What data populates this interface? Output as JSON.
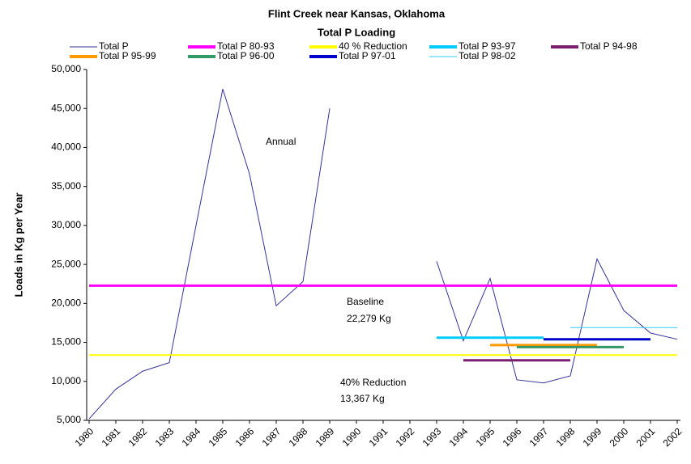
{
  "chart_data": {
    "type": "line",
    "title": "Flint Creek near Kansas, Oklahoma",
    "subtitle": "Total P Loading",
    "y_label": "Loads in Kg per Year",
    "xlim": [
      1980,
      2002
    ],
    "xticks": [
      1980,
      1981,
      1982,
      1983,
      1984,
      1985,
      1986,
      1987,
      1988,
      1989,
      1990,
      1991,
      1992,
      1993,
      1994,
      1995,
      1996,
      1997,
      1998,
      1999,
      2000,
      2001,
      2002
    ],
    "ylim": [
      5000,
      50000
    ],
    "yticks": [
      {
        "value": 5000,
        "label": "5,000"
      },
      {
        "value": 10000,
        "label": "10,000"
      },
      {
        "value": 15000,
        "label": "15,000"
      },
      {
        "value": 20000,
        "label": "20,000"
      },
      {
        "value": 25000,
        "label": "25,000"
      },
      {
        "value": 30000,
        "label": "30,000"
      },
      {
        "value": 35000,
        "label": "35,000"
      },
      {
        "value": 40000,
        "label": "40,000"
      },
      {
        "value": 45000,
        "label": "45,000"
      },
      {
        "value": 50000,
        "label": "50,000"
      }
    ],
    "grid": false,
    "series": [
      {
        "name": "Total P",
        "color": "#333399",
        "width": 1,
        "x": [
          1980,
          1981,
          1982,
          1983,
          1984,
          1985,
          1986,
          1987,
          1988,
          1989,
          1990,
          1991,
          1992,
          1993,
          1994,
          1995,
          1996,
          1997,
          1998,
          1999,
          2000,
          2001,
          2002
        ],
        "values": [
          5200,
          9000,
          11300,
          12400,
          30000,
          47500,
          36600,
          19700,
          22800,
          45000,
          null,
          null,
          null,
          25400,
          15200,
          23200,
          10200,
          9800,
          10700,
          25700,
          19100,
          16200,
          15400
        ]
      },
      {
        "name": "Total P 80-93",
        "color": "#ff00ff",
        "width": 3,
        "x": [
          1980,
          2002
        ],
        "values": [
          22279,
          22279
        ]
      },
      {
        "name": "40 % Reduction",
        "color": "#ffff00",
        "width": 2,
        "x": [
          1980,
          2002
        ],
        "values": [
          13367,
          13367
        ]
      },
      {
        "name": "Total P 93-97",
        "color": "#00ccff",
        "width": 3,
        "x": [
          1993,
          1997
        ],
        "values": [
          15600,
          15600
        ]
      },
      {
        "name": "Total P 94-98",
        "color": "#7a1f6e",
        "width": 3,
        "x": [
          1994,
          1998
        ],
        "values": [
          12700,
          12700
        ]
      },
      {
        "name": "Total P 95-99",
        "color": "#ff9900",
        "width": 3,
        "x": [
          1995,
          1999
        ],
        "values": [
          14650,
          14650
        ]
      },
      {
        "name": "Total P 96-00",
        "color": "#339966",
        "width": 3,
        "x": [
          1996,
          2000
        ],
        "values": [
          14400,
          14400
        ]
      },
      {
        "name": "Total P 97-01",
        "color": "#0000cc",
        "width": 3,
        "x": [
          1997,
          2001
        ],
        "values": [
          15400,
          15400
        ]
      },
      {
        "name": "Total P 98-02",
        "color": "#33ccff",
        "width": 1,
        "x": [
          1998,
          2002
        ],
        "values": [
          16900,
          16900
        ]
      }
    ],
    "annotations": [
      "Annual",
      "Baseline",
      "22,279 Kg",
      "40% Reduction",
      "13,367 Kg"
    ]
  }
}
